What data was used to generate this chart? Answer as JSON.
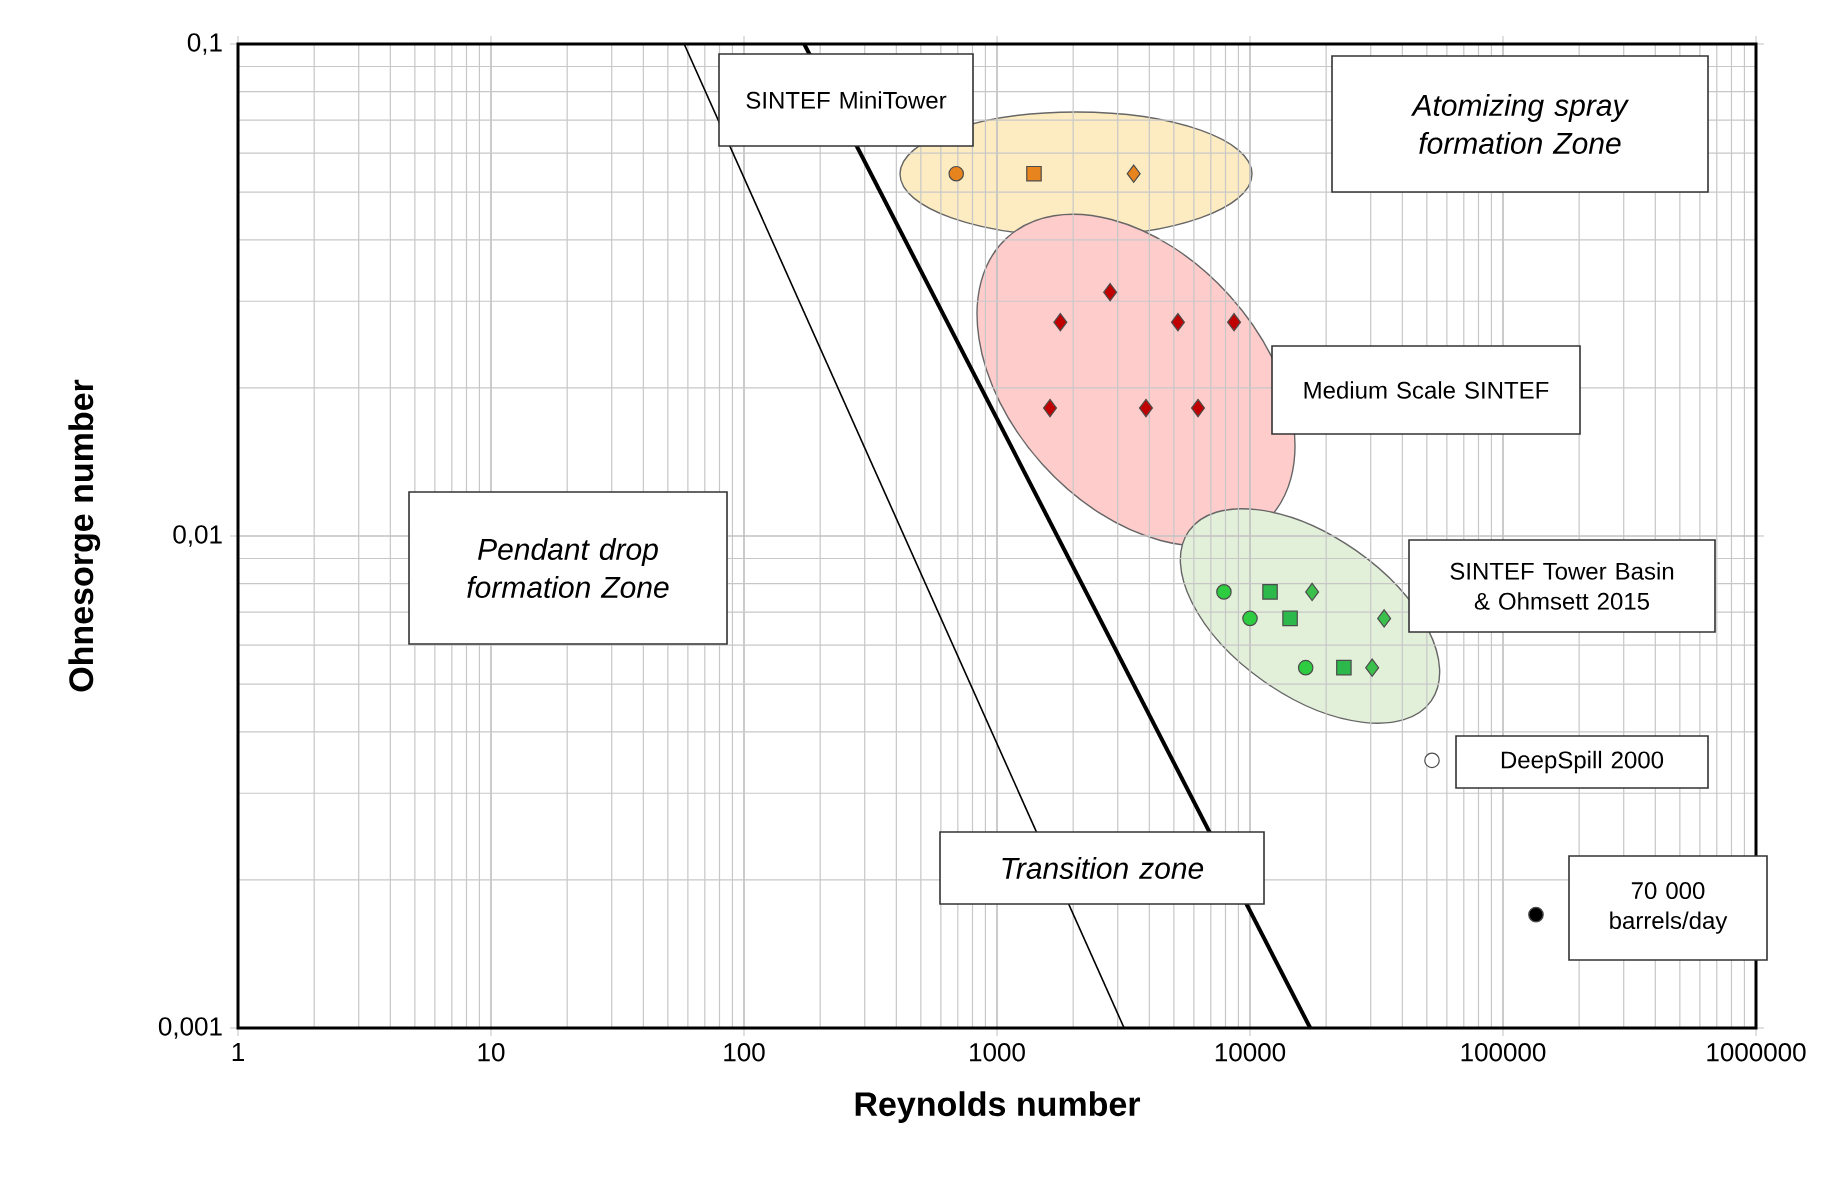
{
  "chart_data": {
    "type": "scatter",
    "xlabel": "Reynolds number",
    "ylabel": "Ohnesorge number",
    "log": "xy",
    "grid": true,
    "xlim": [
      1,
      1000000
    ],
    "xticks": [
      1,
      10,
      100,
      1000,
      10000,
      100000,
      1000000
    ],
    "ylim": [
      0.001,
      0.1
    ],
    "yticks": [
      {
        "value": 0.001,
        "label": "0,001"
      },
      {
        "value": 0.01,
        "label": "0,01"
      },
      {
        "value": 0.1,
        "label": "0,1"
      }
    ],
    "series": [
      {
        "marker": "circle",
        "color": "#e8841e",
        "x": [
          690
        ],
        "values": [
          0.0545
        ]
      },
      {
        "marker": "square",
        "color": "#e8841e",
        "x": [
          1400
        ],
        "values": [
          0.0545
        ]
      },
      {
        "marker": "diamond",
        "color": "#e8841e",
        "x": [
          3470
        ],
        "values": [
          0.0545
        ]
      },
      {
        "marker": "diamond",
        "color": "#c00000",
        "x": [
          2800,
          1780,
          5190,
          8650,
          1620,
          3880,
          6230
        ],
        "values": [
          0.0313,
          0.0272,
          0.0272,
          0.0272,
          0.0182,
          0.0182,
          0.0182
        ]
      },
      {
        "marker": "circle",
        "color": "#2ecc40",
        "x": [
          7890,
          10000,
          16600
        ],
        "values": [
          0.0077,
          0.0068,
          0.0054
        ]
      },
      {
        "marker": "square",
        "color": "#2cb84a",
        "x": [
          12000,
          14400,
          23500
        ],
        "values": [
          0.0077,
          0.0068,
          0.0054
        ]
      },
      {
        "marker": "diamond",
        "color": "#3cc04c",
        "x": [
          17600,
          33900,
          30400
        ],
        "values": [
          0.0077,
          0.0068,
          0.0054
        ]
      },
      {
        "marker": "circle",
        "color": "#ffffff",
        "x": [
          52400
        ],
        "values": [
          0.0035
        ]
      },
      {
        "marker": "circle",
        "color": "#000000",
        "x": [
          135000
        ],
        "values": [
          0.0017
        ]
      },
      {
        "type": "line",
        "marker": "none",
        "color": "#000000",
        "line_style": "solid",
        "x": [
          58,
          3180
        ],
        "values": [
          0.1,
          0.001
        ]
      },
      {
        "type": "line",
        "marker": "none",
        "color": "#000000",
        "line_style": "solid",
        "x": [
          173,
          17300
        ],
        "values": [
          0.1,
          0.001
        ]
      }
    ],
    "annotations": [
      "SINTEF MiniTower",
      "Atomizing spray formation Zone",
      "Medium Scale SINTEF",
      "SINTEF Tower Basin & Ohmsett 2015",
      "DeepSpill 2000",
      "70 000 barrels/day",
      "Pendant drop formation Zone",
      "Transition zone"
    ]
  }
}
